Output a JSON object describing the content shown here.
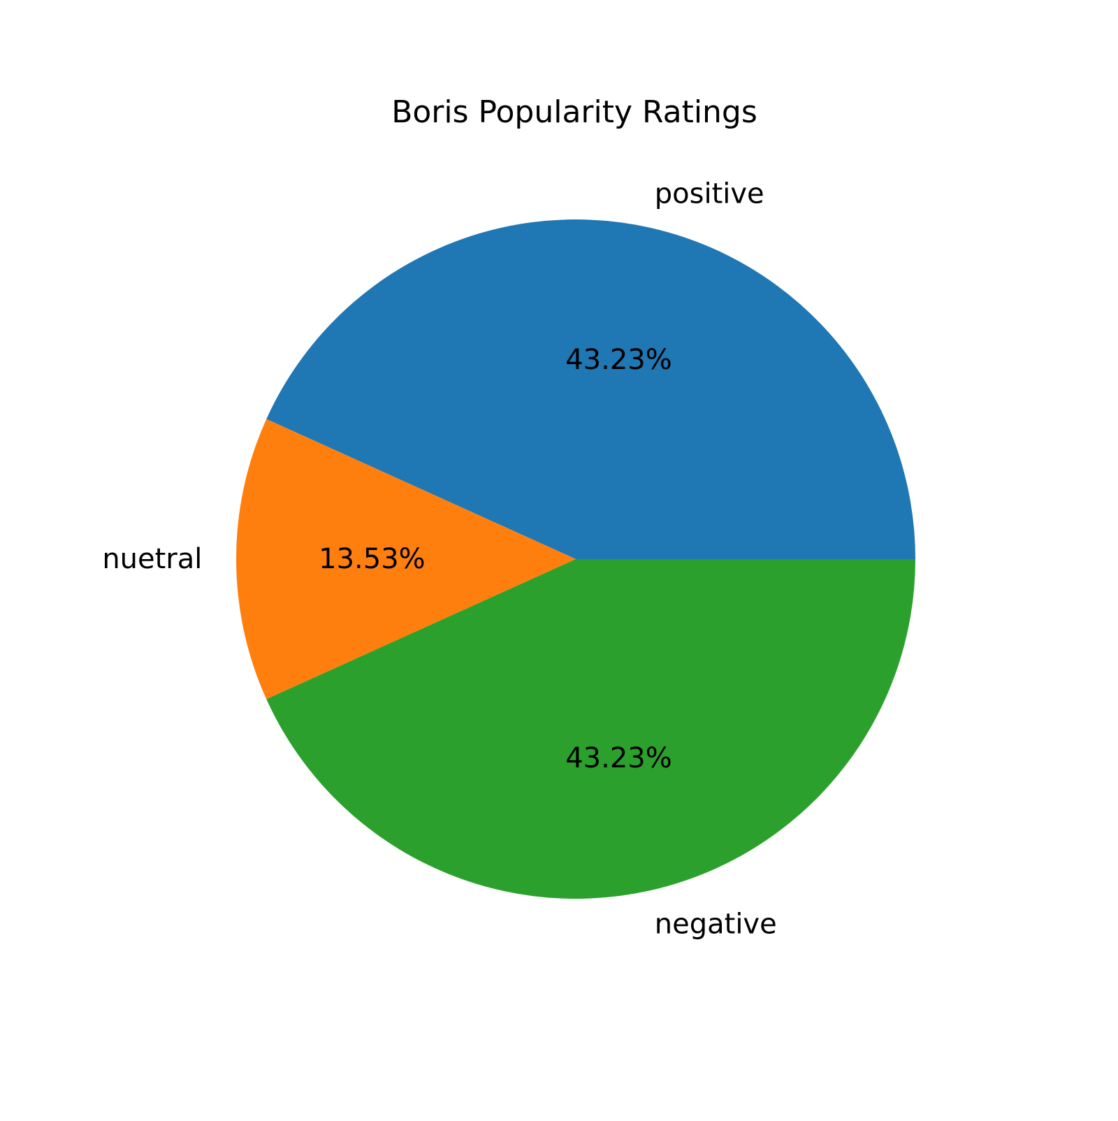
{
  "chart_data": {
    "type": "pie",
    "title": "Boris Popularity Ratings",
    "start_angle_deg": 0,
    "direction": "counterclockwise",
    "slices": [
      {
        "label": "positive",
        "value": 43.23,
        "pct_label": "43.23%",
        "color": "#1f77b4"
      },
      {
        "label": "nuetral",
        "value": 13.53,
        "pct_label": "13.53%",
        "color": "#ff7f0e"
      },
      {
        "label": "negative",
        "value": 43.23,
        "pct_label": "43.23%",
        "color": "#2ca02c"
      }
    ]
  }
}
